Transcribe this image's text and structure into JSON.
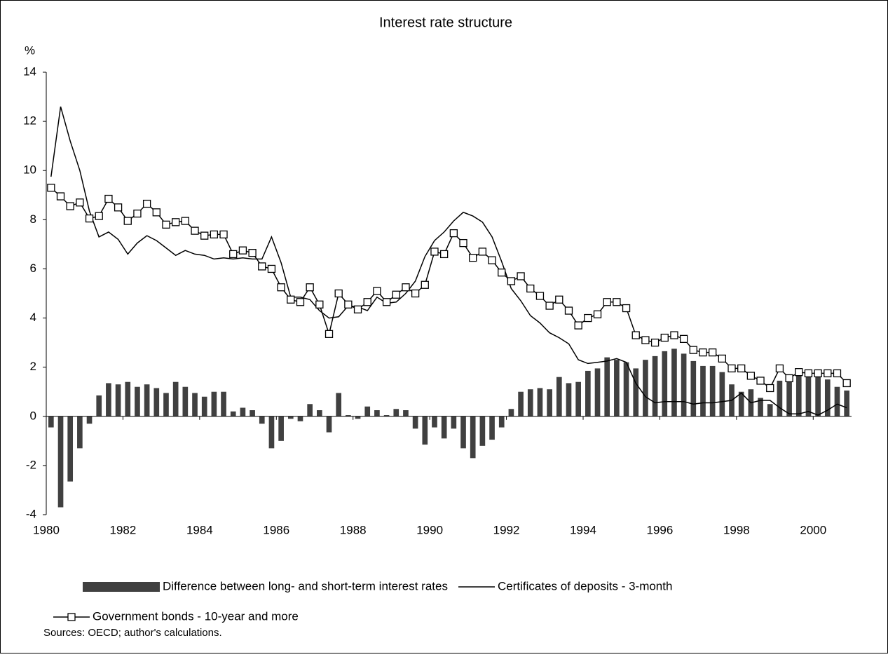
{
  "chart_data": {
    "type": "combo",
    "title": "Interest rate structure",
    "y_label": "%",
    "categories": [
      "1980",
      null,
      null,
      null,
      null,
      null,
      null,
      null,
      "1982",
      null,
      null,
      null,
      null,
      null,
      null,
      null,
      "1984",
      null,
      null,
      null,
      null,
      null,
      null,
      null,
      "1986",
      null,
      null,
      null,
      null,
      null,
      null,
      null,
      "1988",
      null,
      null,
      null,
      null,
      null,
      null,
      null,
      "1990",
      null,
      null,
      null,
      null,
      null,
      null,
      null,
      "1992",
      null,
      null,
      null,
      null,
      null,
      null,
      null,
      "1994",
      null,
      null,
      null,
      null,
      null,
      null,
      null,
      "1996",
      null,
      null,
      null,
      null,
      null,
      null,
      null,
      "1998",
      null,
      null,
      null,
      null,
      null,
      null,
      null,
      "2000",
      null,
      null,
      null
    ],
    "ylim": [
      -4,
      14
    ],
    "yticks": [
      -4,
      -2,
      0,
      2,
      4,
      6,
      8,
      10,
      12,
      14
    ],
    "grid": false,
    "series": [
      {
        "name": "Difference between long- and short-term interest rates",
        "type": "bar",
        "color": "#404040",
        "values": [
          -0.45,
          -3.7,
          -2.65,
          -1.3,
          -0.3,
          0.85,
          1.35,
          1.3,
          1.4,
          1.2,
          1.3,
          1.15,
          0.95,
          1.4,
          1.2,
          0.95,
          0.8,
          1.0,
          1.0,
          0.2,
          0.35,
          0.25,
          -0.3,
          -1.3,
          -1.0,
          -0.1,
          -0.2,
          0.5,
          0.25,
          -0.65,
          0.95,
          0.05,
          -0.1,
          0.4,
          0.25,
          0.05,
          0.3,
          0.25,
          -0.5,
          -1.15,
          -0.45,
          -0.9,
          -0.5,
          -1.3,
          -1.7,
          -1.2,
          -0.95,
          -0.45,
          0.3,
          1.0,
          1.1,
          1.15,
          1.1,
          1.6,
          1.35,
          1.4,
          1.85,
          1.95,
          2.4,
          2.3,
          2.2,
          1.95,
          2.3,
          2.45,
          2.65,
          2.75,
          2.55,
          2.25,
          2.05,
          2.05,
          1.8,
          1.3,
          1.0,
          1.1,
          0.75,
          0.5,
          1.45,
          1.45,
          1.7,
          1.65,
          1.65,
          1.5,
          1.2,
          1.05
        ]
      },
      {
        "name": "Certificates of deposits - 3-month",
        "type": "line",
        "color": "#000000",
        "values": [
          9.75,
          12.6,
          11.2,
          10.0,
          8.35,
          7.3,
          7.5,
          7.2,
          6.6,
          7.05,
          7.35,
          7.15,
          6.85,
          6.55,
          6.75,
          6.6,
          6.55,
          6.4,
          6.45,
          6.4,
          6.45,
          6.4,
          6.4,
          7.3,
          6.25,
          4.85,
          4.85,
          4.75,
          4.3,
          4.0,
          4.05,
          4.5,
          4.45,
          4.3,
          4.85,
          4.6,
          4.65,
          5.0,
          5.5,
          6.5,
          7.15,
          7.5,
          7.95,
          8.3,
          8.15,
          7.9,
          7.3,
          6.3,
          5.2,
          4.7,
          4.1,
          3.8,
          3.4,
          3.2,
          2.95,
          2.3,
          2.15,
          2.2,
          2.25,
          2.35,
          2.2,
          1.35,
          0.8,
          0.55,
          0.6,
          0.6,
          0.6,
          0.5,
          0.55,
          0.55,
          0.6,
          0.65,
          0.95,
          0.55,
          0.65,
          0.65,
          0.35,
          0.1,
          0.1,
          0.2,
          0.05,
          0.25,
          0.5,
          0.35
        ]
      },
      {
        "name": "Government bonds - 10-year and more",
        "type": "line",
        "marker": "square",
        "color": "#000000",
        "values": [
          9.3,
          8.95,
          8.55,
          8.7,
          8.05,
          8.15,
          8.85,
          8.5,
          7.95,
          8.25,
          8.65,
          8.3,
          7.8,
          7.9,
          7.95,
          7.55,
          7.35,
          7.4,
          7.4,
          6.6,
          6.75,
          6.65,
          6.1,
          6.0,
          5.25,
          4.75,
          4.65,
          5.25,
          4.55,
          3.35,
          5.0,
          4.55,
          4.35,
          4.65,
          5.1,
          4.65,
          4.95,
          5.25,
          5.0,
          5.35,
          6.7,
          6.6,
          7.45,
          7.05,
          6.45,
          6.7,
          6.35,
          5.85,
          5.5,
          5.7,
          5.2,
          4.9,
          4.5,
          4.75,
          4.3,
          3.7,
          4.0,
          4.15,
          4.65,
          4.65,
          4.4,
          3.3,
          3.1,
          3.0,
          3.2,
          3.3,
          3.15,
          2.7,
          2.6,
          2.6,
          2.35,
          1.95,
          1.95,
          1.65,
          1.45,
          1.15,
          1.95,
          1.55,
          1.8,
          1.75,
          1.75,
          1.75,
          1.75,
          1.35
        ]
      }
    ],
    "source": "Sources: OECD; author's calculations."
  }
}
